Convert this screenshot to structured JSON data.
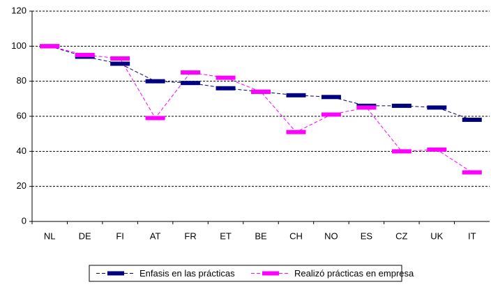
{
  "chart_data": {
    "type": "line",
    "categories": [
      "NL",
      "DE",
      "FI",
      "AT",
      "FR",
      "ET",
      "BE",
      "CH",
      "NO",
      "ES",
      "CZ",
      "UK",
      "IT"
    ],
    "series": [
      {
        "name": "Enfasis en las prácticas",
        "color": "#000080",
        "values": [
          100,
          94,
          90,
          80,
          79,
          76,
          74,
          72,
          71,
          66,
          66,
          65,
          58
        ]
      },
      {
        "name": "Realizó prácticas en empresa",
        "color": "#ff00ff",
        "values": [
          100,
          95,
          93,
          59,
          85,
          82,
          74,
          51,
          61,
          65,
          40,
          41,
          28
        ]
      }
    ],
    "ylim": [
      0,
      120
    ],
    "yticks": [
      0,
      20,
      40,
      60,
      80,
      100,
      120
    ],
    "grid": true,
    "legend": "bottom"
  }
}
